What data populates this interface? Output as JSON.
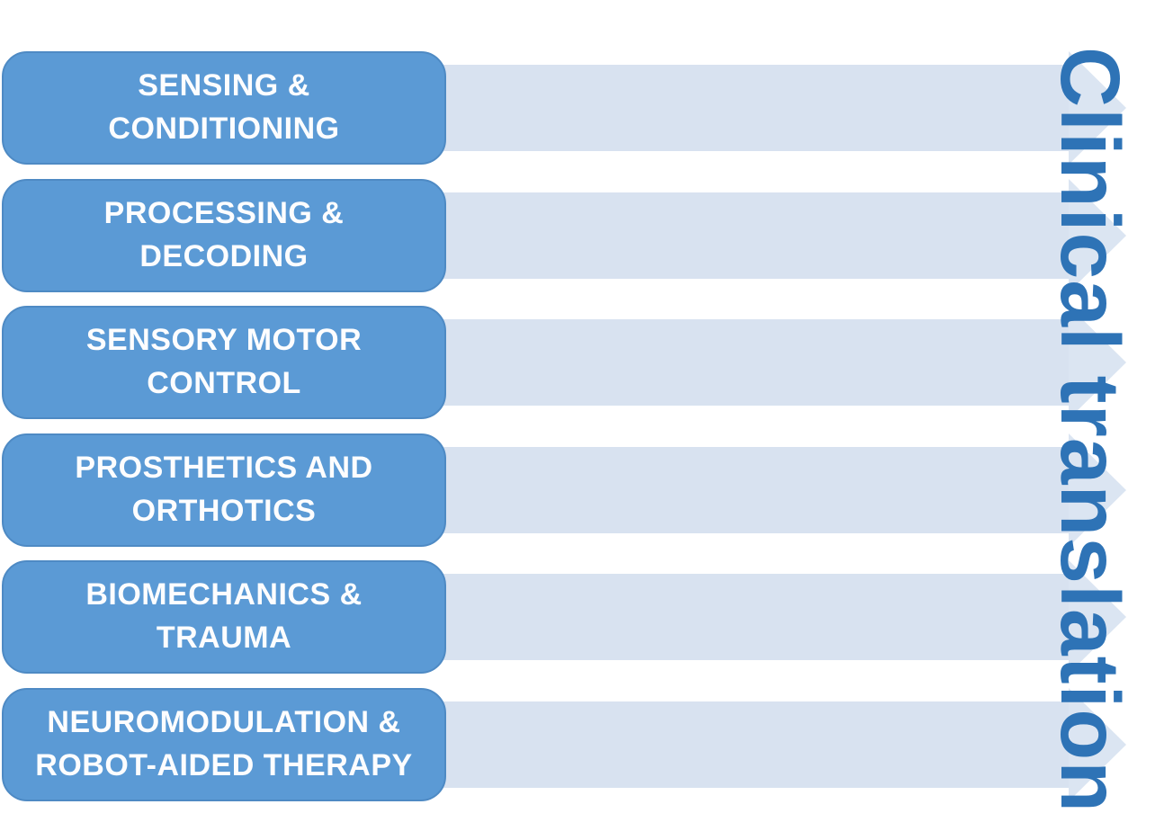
{
  "diagram": {
    "vertical_title": "Clinical translation",
    "stages": [
      {
        "label": "SENSING &\nCONDITIONING"
      },
      {
        "label": "PROCESSING &\nDECODING"
      },
      {
        "label": "SENSORY MOTOR\nCONTROL"
      },
      {
        "label": "PROSTHETICS AND\nORTHOTICS"
      },
      {
        "label": "BIOMECHANICS &\nTRAUMA"
      },
      {
        "label": "NEUROMODULATION &\nROBOT-AIDED THERAPY"
      }
    ],
    "colors": {
      "stage_box_fill": "#5b9ad5",
      "stage_box_border": "#4e8ac4",
      "stage_label_text": "#fdfdfe",
      "arrow_fill": "#d8e2f0",
      "vertical_title_text": "#2e73b6",
      "background": "#ffffff"
    }
  }
}
